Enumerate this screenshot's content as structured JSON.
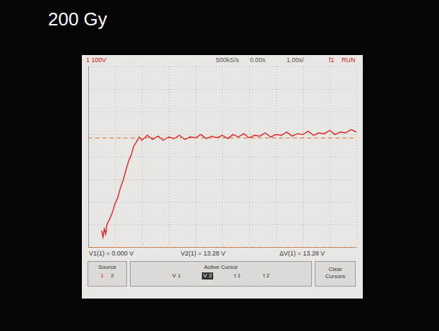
{
  "caption": "200 Gy",
  "scope": {
    "channel": "1 100V",
    "sample_rate": "500kS/s",
    "delay": "0.00s",
    "timebase": "1.00s/",
    "trigger": "f1",
    "state": "RUN"
  },
  "readouts": [
    "V1(1) = 0.000 V",
    "V2(1) = 13.28 V",
    "ΔV(1) = 13.28 V"
  ],
  "softkeys": {
    "source": {
      "label": "Source",
      "options": [
        "1",
        "2"
      ]
    },
    "active_cursor": {
      "label": "Active Cursor",
      "options": [
        "V 1",
        "V 2",
        "t 1",
        "t 2"
      ]
    },
    "clear": "Clear Cursors"
  },
  "chart_data": {
    "type": "line",
    "x": [
      -4.5,
      -4.45,
      -4.4,
      -4.35,
      -4.3,
      -4.2,
      -4.1,
      -4.0,
      -3.9,
      -3.8,
      -3.7,
      -3.6,
      -3.5,
      -3.4,
      -3.3,
      -3.2,
      -3.1,
      -3.0,
      -2.8,
      -2.6,
      -2.4,
      -2.2,
      -2.0,
      -1.8,
      -1.6,
      -1.4,
      -1.2,
      -1.0,
      -0.8,
      -0.6,
      -0.4,
      -0.2,
      0,
      0.2,
      0.4,
      0.6,
      0.8,
      1.0,
      1.2,
      1.4,
      1.6,
      1.8,
      2.0,
      2.2,
      2.4,
      2.6,
      2.8,
      3.0,
      3.2,
      3.4,
      3.6,
      3.8,
      4.0,
      4.2,
      4.4,
      4.6,
      4.8,
      5.0
    ],
    "values": [
      2.0,
      1.2,
      2.2,
      1.6,
      2.8,
      3.4,
      4.2,
      5.3,
      6.0,
      7.2,
      8.1,
      9.3,
      10.4,
      11.2,
      12.3,
      12.8,
      13.4,
      13.0,
      13.6,
      13.1,
      13.5,
      13.0,
      13.4,
      13.2,
      13.6,
      13.1,
      13.4,
      13.3,
      13.7,
      13.2,
      13.5,
      13.3,
      13.6,
      13.2,
      13.7,
      13.4,
      13.8,
      13.3,
      13.6,
      13.5,
      13.9,
      13.4,
      13.7,
      13.6,
      14.0,
      13.5,
      13.8,
      13.7,
      14.1,
      13.6,
      13.9,
      13.8,
      14.2,
      13.7,
      14.0,
      13.9,
      14.3,
      14.0
    ],
    "color": "#e0202a",
    "xlim": [
      -5,
      5
    ],
    "xticks": [
      -5,
      -4,
      -3,
      -2,
      -1,
      0,
      1,
      2,
      3,
      4,
      5
    ],
    "ylim": [
      0,
      22
    ],
    "yticks": [
      0,
      2.75,
      5.5,
      8.25,
      11,
      13.75,
      16.5,
      19.25,
      22
    ],
    "grid": true,
    "tick_labels": false,
    "cursors": [
      0,
      13.28
    ]
  }
}
